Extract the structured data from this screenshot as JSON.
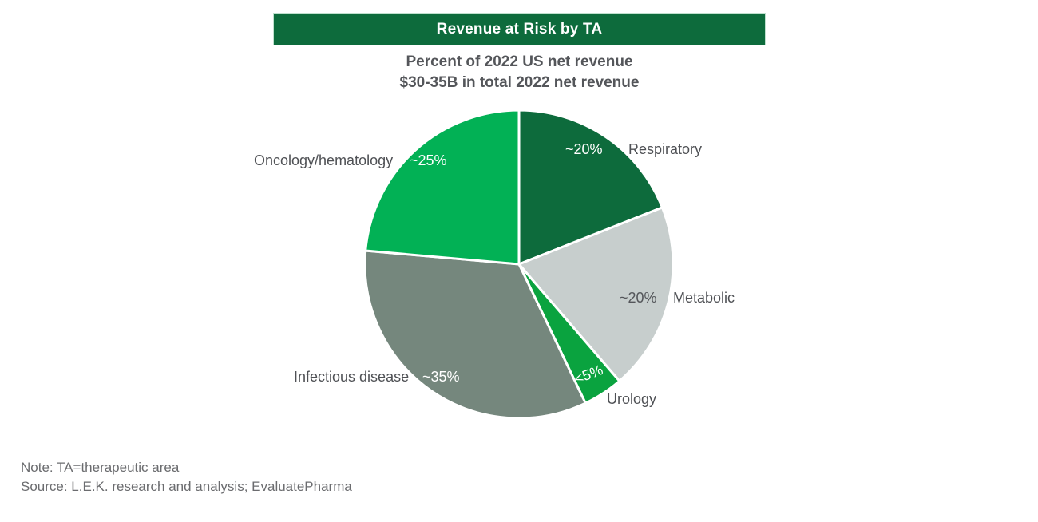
{
  "header": {
    "title": "Revenue at Risk by TA",
    "bar_color": "#0d6b3c"
  },
  "subtitle": {
    "line1": "Percent of 2022 US net revenue",
    "line2": "$30-35B in total 2022 net revenue"
  },
  "chart_data": {
    "type": "pie",
    "title": "Revenue at Risk by TA",
    "subtitle": [
      "Percent of 2022 US net revenue",
      "$30-35B in total 2022 net revenue"
    ],
    "units": "percent of 2022 US net revenue",
    "start_angle_deg": 0,
    "direction": "clockwise",
    "slices": [
      {
        "name": "Respiratory",
        "value": 19.0,
        "share_label": "~20%",
        "color": "#0d6b3c",
        "value_label_color": "#ffffff"
      },
      {
        "name": "Metabolic",
        "value": 19.7,
        "share_label": "~20%",
        "color": "#c7cecd",
        "value_label_color": "#54565a"
      },
      {
        "name": "Urology",
        "value": 4.2,
        "share_label": "<5%",
        "color": "#0aa33f",
        "value_label_color": "#ffffff"
      },
      {
        "name": "Infectious disease",
        "value": 33.5,
        "share_label": "~35%",
        "color": "#75877d",
        "value_label_color": "#ffffff"
      },
      {
        "name": "Oncology/hematology",
        "value": 23.6,
        "share_label": "~25%",
        "color": "#02b155",
        "value_label_color": "#ffffff"
      }
    ]
  },
  "notes": {
    "note": "Note: TA=therapeutic area",
    "source": "Source: L.E.K. research and analysis; EvaluatePharma"
  }
}
